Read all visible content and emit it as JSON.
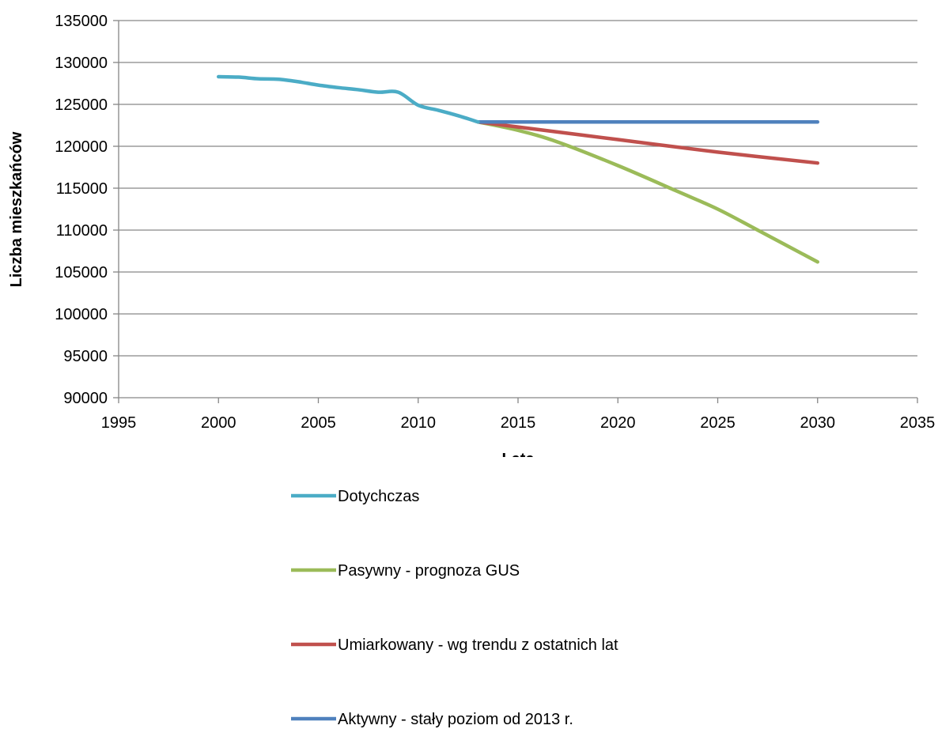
{
  "chart_data": {
    "type": "line",
    "title": "",
    "xlabel": "Lata",
    "ylabel": "Liczba mieszkańców",
    "xlim": [
      1995,
      2035
    ],
    "ylim": [
      90000,
      135000
    ],
    "x_ticks": [
      1995,
      2000,
      2005,
      2010,
      2015,
      2020,
      2025,
      2030,
      2035
    ],
    "y_ticks": [
      90000,
      95000,
      100000,
      105000,
      110000,
      115000,
      120000,
      125000,
      130000,
      135000
    ],
    "grid": "horizontal",
    "legend_position": "bottom",
    "series": [
      {
        "name": "Dotychczas",
        "color": "#4BACC6",
        "points": [
          [
            2000,
            128300
          ],
          [
            2001,
            128250
          ],
          [
            2002,
            128050
          ],
          [
            2003,
            128000
          ],
          [
            2004,
            127700
          ],
          [
            2005,
            127300
          ],
          [
            2006,
            127000
          ],
          [
            2007,
            126750
          ],
          [
            2008,
            126450
          ],
          [
            2009,
            126450
          ],
          [
            2010,
            124900
          ],
          [
            2011,
            124300
          ],
          [
            2012,
            123650
          ],
          [
            2013,
            122900
          ]
        ]
      },
      {
        "name": "Pasywny - prognoza GUS",
        "color": "#9BBB59",
        "points": [
          [
            2013,
            122900
          ],
          [
            2015,
            121900
          ],
          [
            2017,
            120500
          ],
          [
            2020,
            117700
          ],
          [
            2023,
            114600
          ],
          [
            2025,
            112500
          ],
          [
            2027,
            110000
          ],
          [
            2030,
            106200
          ]
        ]
      },
      {
        "name": "Umiarkowany - wg trendu z ostatnich lat",
        "color": "#C0504D",
        "points": [
          [
            2013,
            122900
          ],
          [
            2015,
            122300
          ],
          [
            2020,
            120800
          ],
          [
            2025,
            119300
          ],
          [
            2030,
            118000
          ]
        ]
      },
      {
        "name": "Aktywny - stały poziom od 2013 r.",
        "color": "#4F81BD",
        "points": [
          [
            2013,
            122900
          ],
          [
            2030,
            122900
          ]
        ]
      }
    ]
  }
}
